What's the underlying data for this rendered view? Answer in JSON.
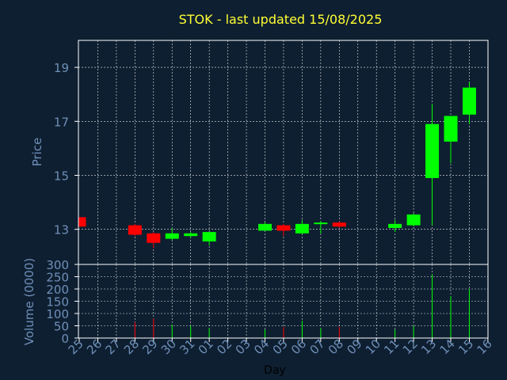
{
  "chart_data": {
    "type": "candlestick",
    "title": "STOK - last updated 15/08/2025",
    "xlabel": "Day",
    "price_panel": {
      "ylabel": "Price",
      "ylim": [
        11.7,
        20.0
      ],
      "yticks": [
        13,
        15,
        17,
        19
      ]
    },
    "volume_panel": {
      "ylabel": "Volume (0000)",
      "ylim": [
        0,
        300
      ],
      "yticks": [
        0,
        50,
        100,
        150,
        200,
        250,
        300
      ]
    },
    "categories": [
      "25",
      "26",
      "27",
      "28",
      "29",
      "30",
      "31",
      "01",
      "02",
      "03",
      "04",
      "05",
      "06",
      "07",
      "08",
      "09",
      "10",
      "11",
      "12",
      "13",
      "14",
      "15",
      "16"
    ],
    "colors": {
      "up": "#00ff00",
      "down": "#ff0000",
      "background": "#0e1f31",
      "grid": "#ffffff",
      "title": "#ffff33",
      "label": "#6f8fb8"
    },
    "grid": true,
    "candles": [
      {
        "day": "25",
        "open": 13.45,
        "close": 13.1,
        "high": 13.45,
        "low": 13.1,
        "volume": 0
      },
      {
        "day": "28",
        "open": 13.15,
        "close": 12.8,
        "high": 13.2,
        "low": 12.75,
        "volume": 65
      },
      {
        "day": "29",
        "open": 12.85,
        "close": 12.5,
        "high": 12.9,
        "low": 12.3,
        "volume": 80
      },
      {
        "day": "30",
        "open": 12.65,
        "close": 12.85,
        "high": 13.05,
        "low": 12.6,
        "volume": 55
      },
      {
        "day": "31",
        "open": 12.75,
        "close": 12.85,
        "high": 12.9,
        "low": 12.7,
        "volume": 50
      },
      {
        "day": "01",
        "open": 12.55,
        "close": 12.9,
        "high": 12.9,
        "low": 12.4,
        "volume": 40
      },
      {
        "day": "04",
        "open": 12.95,
        "close": 13.2,
        "high": 13.25,
        "low": 12.95,
        "volume": 35
      },
      {
        "day": "05",
        "open": 13.15,
        "close": 12.95,
        "high": 13.2,
        "low": 12.75,
        "volume": 45
      },
      {
        "day": "06",
        "open": 12.85,
        "close": 13.2,
        "high": 13.35,
        "low": 12.8,
        "volume": 70
      },
      {
        "day": "07",
        "open": 13.2,
        "close": 13.25,
        "high": 13.3,
        "low": 12.85,
        "volume": 40
      },
      {
        "day": "08",
        "open": 13.25,
        "close": 13.1,
        "high": 13.3,
        "low": 13.05,
        "volume": 45
      },
      {
        "day": "11",
        "open": 13.05,
        "close": 13.2,
        "high": 13.35,
        "low": 12.9,
        "volume": 35
      },
      {
        "day": "12",
        "open": 13.15,
        "close": 13.55,
        "high": 13.6,
        "low": 13.1,
        "volume": 50
      },
      {
        "day": "13",
        "open": 14.9,
        "close": 16.9,
        "high": 17.65,
        "low": 13.15,
        "volume": 260
      },
      {
        "day": "14",
        "open": 16.25,
        "close": 17.2,
        "high": 17.2,
        "low": 15.45,
        "volume": 170
      },
      {
        "day": "15",
        "open": 17.25,
        "close": 18.25,
        "high": 18.45,
        "low": 16.9,
        "volume": 200
      }
    ]
  }
}
